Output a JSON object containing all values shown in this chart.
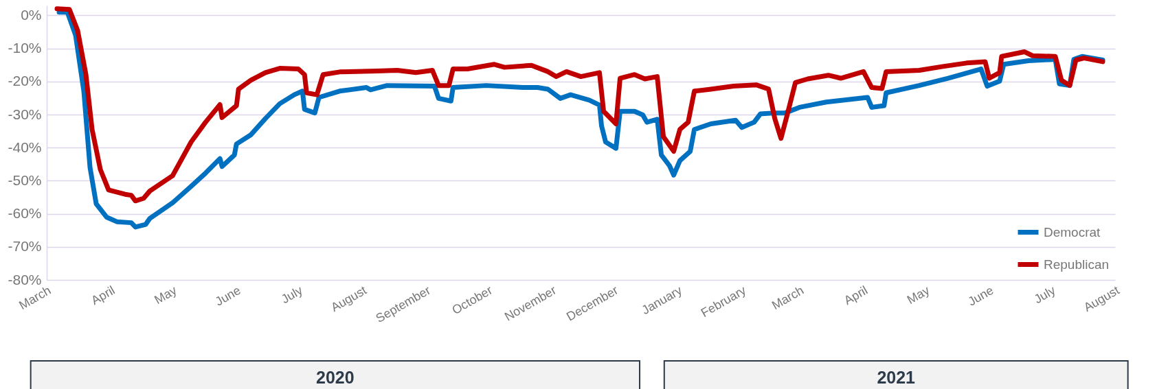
{
  "chart_data": {
    "type": "line",
    "xlim": [
      "2020-03-01",
      "2021-08-01"
    ],
    "xticks": [
      {
        "value": "2020-03-01",
        "label": "March"
      },
      {
        "value": "2020-04-01",
        "label": "April"
      },
      {
        "value": "2020-05-01",
        "label": "May"
      },
      {
        "value": "2020-06-01",
        "label": "June"
      },
      {
        "value": "2020-07-01",
        "label": "July"
      },
      {
        "value": "2020-08-01",
        "label": "August"
      },
      {
        "value": "2020-09-01",
        "label": "September"
      },
      {
        "value": "2020-10-01",
        "label": "October"
      },
      {
        "value": "2020-11-01",
        "label": "November"
      },
      {
        "value": "2020-12-01",
        "label": "December"
      },
      {
        "value": "2021-01-01",
        "label": "January"
      },
      {
        "value": "2021-02-01",
        "label": "February"
      },
      {
        "value": "2021-03-01",
        "label": "March"
      },
      {
        "value": "2021-04-01",
        "label": "April"
      },
      {
        "value": "2021-05-01",
        "label": "May"
      },
      {
        "value": "2021-06-01",
        "label": "June"
      },
      {
        "value": "2021-07-01",
        "label": "July"
      },
      {
        "value": "2021-08-01",
        "label": "August"
      }
    ],
    "ylim": [
      -80,
      3
    ],
    "yticks": [
      {
        "value": 0,
        "label": "0%"
      },
      {
        "value": -10,
        "label": "-10%"
      },
      {
        "value": -20,
        "label": "-20%"
      },
      {
        "value": -30,
        "label": "-30%"
      },
      {
        "value": -40,
        "label": "-40%"
      },
      {
        "value": -50,
        "label": "-50%"
      },
      {
        "value": -60,
        "label": "-60%"
      },
      {
        "value": -70,
        "label": "-70%"
      },
      {
        "value": -80,
        "label": "-80%"
      }
    ],
    "grid": "y",
    "legend": "bottom right",
    "line_style": "solid",
    "annotations": [
      "2020",
      "2021"
    ],
    "series": [
      {
        "name": "Democrat",
        "color": "#0070c0",
        "x": [
          "2020-03-07",
          "2020-03-11",
          "2020-03-15",
          "2020-03-19",
          "2020-03-22",
          "2020-03-25",
          "2020-03-30",
          "2020-04-04",
          "2020-04-11",
          "2020-04-13",
          "2020-04-18",
          "2020-04-20",
          "2020-05-01",
          "2020-05-10",
          "2020-05-17",
          "2020-05-24",
          "2020-05-25",
          "2020-05-31",
          "2020-06-01",
          "2020-06-08",
          "2020-06-15",
          "2020-06-22",
          "2020-06-29",
          "2020-07-03",
          "2020-07-04",
          "2020-07-09",
          "2020-07-11",
          "2020-07-21",
          "2020-08-03",
          "2020-08-05",
          "2020-08-13",
          "2020-09-05",
          "2020-09-07",
          "2020-09-13",
          "2020-09-14",
          "2020-09-30",
          "2020-10-18",
          "2020-10-25",
          "2020-10-30",
          "2020-11-05",
          "2020-11-10",
          "2020-11-19",
          "2020-11-24",
          "2020-11-25",
          "2020-11-27",
          "2020-12-02",
          "2020-12-04",
          "2020-12-11",
          "2020-12-15",
          "2020-12-17",
          "2020-12-22",
          "2020-12-24",
          "2020-12-28",
          "2020-12-30",
          "2021-01-02",
          "2021-01-07",
          "2021-01-09",
          "2021-01-17",
          "2021-01-29",
          "2021-02-01",
          "2021-02-07",
          "2021-02-10",
          "2021-02-17",
          "2021-02-22",
          "2021-03-01",
          "2021-03-14",
          "2021-04-03",
          "2021-04-05",
          "2021-04-11",
          "2021-04-12",
          "2021-04-28",
          "2021-05-12",
          "2021-05-28",
          "2021-05-31",
          "2021-06-06",
          "2021-06-08",
          "2021-06-20",
          "2021-07-03",
          "2021-07-05",
          "2021-07-10",
          "2021-07-12",
          "2021-07-16",
          "2021-07-26"
        ],
        "values": [
          1,
          1,
          -6,
          -23,
          -46,
          -57,
          -61,
          -62.4,
          -62.7,
          -64,
          -63.2,
          -61.4,
          -56.7,
          -51.7,
          -47.7,
          -43.3,
          -45.7,
          -42.2,
          -38.9,
          -36.1,
          -31.2,
          -26.7,
          -24,
          -22.9,
          -28.4,
          -29.5,
          -24.8,
          -22.9,
          -21.8,
          -22.5,
          -21.2,
          -21.4,
          -25.1,
          -25.9,
          -21.8,
          -21.2,
          -21.8,
          -21.8,
          -22.3,
          -25.1,
          -24,
          -25.6,
          -27.1,
          -33.4,
          -38.3,
          -40.2,
          -29,
          -29,
          -30.1,
          -32.3,
          -31.4,
          -42.2,
          -45.5,
          -48.3,
          -43.9,
          -41.1,
          -34.5,
          -32.8,
          -31.7,
          -33.9,
          -32.3,
          -29.8,
          -29.5,
          -29.5,
          -27.8,
          -26.2,
          -24.8,
          -27.8,
          -27.3,
          -23.4,
          -21.2,
          -19,
          -16.2,
          -21.4,
          -19.9,
          -14.8,
          -13.7,
          -13.3,
          -20.7,
          -21.2,
          -13.3,
          -12.4,
          -13.5
        ]
      },
      {
        "name": "Republican",
        "color": "#c00000",
        "x": [
          "2020-03-06",
          "2020-03-12",
          "2020-03-16",
          "2020-03-20",
          "2020-03-23",
          "2020-03-27",
          "2020-03-31",
          "2020-04-08",
          "2020-04-11",
          "2020-04-13",
          "2020-04-17",
          "2020-04-20",
          "2020-05-01",
          "2020-05-10",
          "2020-05-17",
          "2020-05-24",
          "2020-05-25",
          "2020-06-01",
          "2020-06-02",
          "2020-06-08",
          "2020-06-15",
          "2020-06-22",
          "2020-07-01",
          "2020-07-04",
          "2020-07-05",
          "2020-07-10",
          "2020-07-13",
          "2020-07-21",
          "2020-08-08",
          "2020-08-18",
          "2020-08-27",
          "2020-09-04",
          "2020-09-07",
          "2020-09-12",
          "2020-09-14",
          "2020-09-21",
          "2020-10-04",
          "2020-10-09",
          "2020-10-22",
          "2020-10-30",
          "2020-11-03",
          "2020-11-08",
          "2020-11-15",
          "2020-11-24",
          "2020-11-26",
          "2020-12-02",
          "2020-12-04",
          "2020-12-11",
          "2020-12-16",
          "2020-12-22",
          "2020-12-25",
          "2020-12-30",
          "2021-01-02",
          "2021-01-06",
          "2021-01-09",
          "2021-01-17",
          "2021-01-28",
          "2021-02-08",
          "2021-02-14",
          "2021-02-17",
          "2021-02-20",
          "2021-02-23",
          "2021-02-27",
          "2021-03-05",
          "2021-03-15",
          "2021-03-21",
          "2021-04-01",
          "2021-04-05",
          "2021-04-10",
          "2021-04-12",
          "2021-04-28",
          "2021-05-09",
          "2021-05-21",
          "2021-05-30",
          "2021-06-01",
          "2021-06-06",
          "2021-06-07",
          "2021-06-18",
          "2021-06-22",
          "2021-07-03",
          "2021-07-06",
          "2021-07-10",
          "2021-07-13",
          "2021-07-17",
          "2021-07-26"
        ],
        "values": [
          2,
          1.8,
          -4.6,
          -17.9,
          -34.5,
          -46.6,
          -52.8,
          -54.1,
          -54.4,
          -56.1,
          -55.3,
          -53.1,
          -48.5,
          -38.3,
          -32.3,
          -27,
          -30.9,
          -27.3,
          -22.3,
          -19.6,
          -17.3,
          -16,
          -16.2,
          -17.9,
          -23.4,
          -24,
          -17.9,
          -17.1,
          -16.8,
          -16.6,
          -17.3,
          -16.6,
          -21.2,
          -21.2,
          -16.2,
          -16.2,
          -14.8,
          -15.7,
          -15.1,
          -17,
          -18.5,
          -17,
          -18.5,
          -17.3,
          -29,
          -32.8,
          -19,
          -17.9,
          -19.2,
          -18.5,
          -36.7,
          -41.1,
          -34.5,
          -32.3,
          -22.9,
          -22.3,
          -21.4,
          -21,
          -22.3,
          -31.2,
          -37.2,
          -30.1,
          -20.3,
          -19.2,
          -18.1,
          -19,
          -17,
          -21.8,
          -22.1,
          -17,
          -16.6,
          -15.5,
          -14.4,
          -14,
          -19,
          -17.3,
          -12.4,
          -11,
          -12.2,
          -12.4,
          -19.6,
          -21.2,
          -13.5,
          -12.9,
          -14
        ]
      }
    ]
  }
}
